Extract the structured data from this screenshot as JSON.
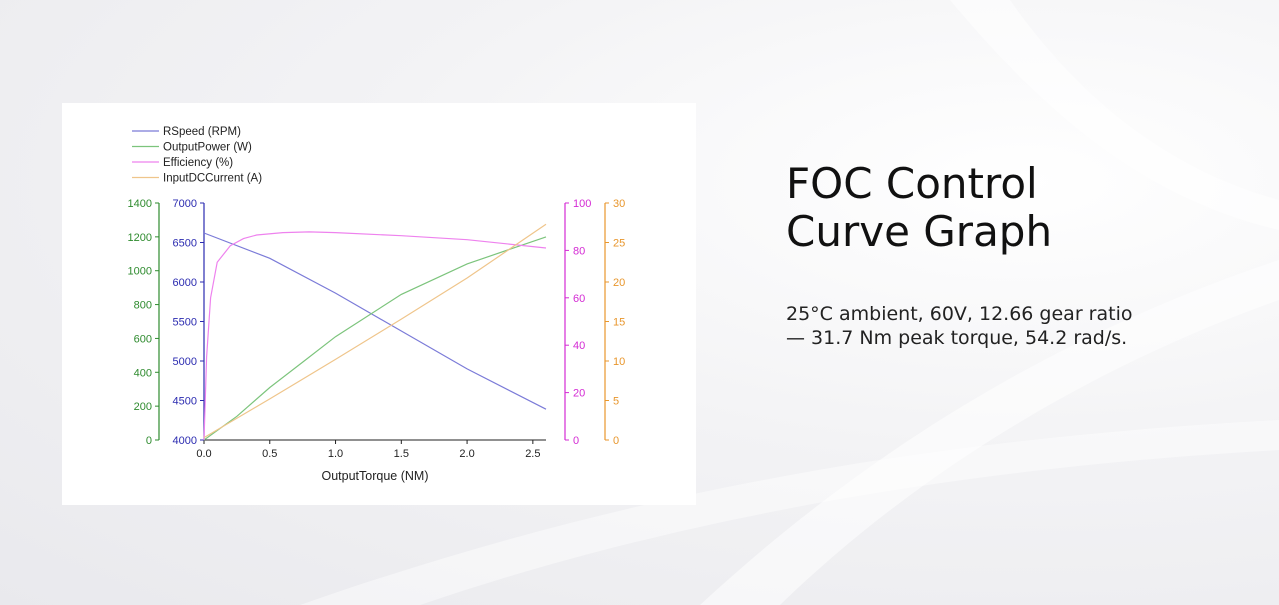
{
  "headline": {
    "line1": "FOC Control",
    "line2": "Curve Graph"
  },
  "caption": {
    "line1": "25°C ambient, 60V, 12.66 gear ratio",
    "line2": "— 31.7 Nm peak torque, 54.2 rad/s."
  },
  "chart_data": {
    "type": "line",
    "xlabel": "OutputTorque (NM)",
    "xlim": [
      0,
      2.6
    ],
    "x_ticks": [
      "0.0",
      "0.5",
      "1.0",
      "1.5",
      "2.0",
      "2.5"
    ],
    "legend_position": "top-left",
    "grid": false,
    "axes": [
      {
        "id": "power",
        "color": "#2e8b2e",
        "range": [
          0,
          1400
        ],
        "ticks": [
          0,
          200,
          400,
          600,
          800,
          1000,
          1200,
          1400
        ]
      },
      {
        "id": "speed",
        "color": "#2b2bb0",
        "range": [
          4000,
          7000
        ],
        "ticks": [
          4000,
          4500,
          5000,
          5500,
          6000,
          6500,
          7000
        ]
      },
      {
        "id": "efficiency",
        "color": "#d42bd4",
        "range": [
          0,
          100
        ],
        "ticks": [
          0,
          20,
          40,
          60,
          80,
          100
        ]
      },
      {
        "id": "current",
        "color": "#e8962c",
        "range": [
          0,
          30
        ],
        "ticks": [
          0,
          5,
          10,
          15,
          20,
          25,
          30
        ]
      }
    ],
    "series": [
      {
        "name": "RSpeed (RPM)",
        "axis": "speed",
        "color": "#7b7bd8",
        "points": [
          [
            0,
            6620
          ],
          [
            0.5,
            6300
          ],
          [
            1.0,
            5860
          ],
          [
            1.5,
            5380
          ],
          [
            2.0,
            4900
          ],
          [
            2.6,
            4390
          ]
        ]
      },
      {
        "name": "OutputPower (W)",
        "axis": "power",
        "color": "#7cc47c",
        "points": [
          [
            0,
            0
          ],
          [
            0.25,
            140
          ],
          [
            0.5,
            310
          ],
          [
            0.75,
            460
          ],
          [
            1.0,
            610
          ],
          [
            1.5,
            860
          ],
          [
            2.0,
            1040
          ],
          [
            2.6,
            1200
          ]
        ]
      },
      {
        "name": "Efficiency (%)",
        "axis": "efficiency",
        "color": "#ee82ee",
        "points": [
          [
            0,
            0
          ],
          [
            0.02,
            35
          ],
          [
            0.05,
            60
          ],
          [
            0.1,
            75
          ],
          [
            0.2,
            82
          ],
          [
            0.3,
            85
          ],
          [
            0.4,
            86.5
          ],
          [
            0.6,
            87.5
          ],
          [
            0.8,
            87.8
          ],
          [
            1.0,
            87.5
          ],
          [
            1.5,
            86.2
          ],
          [
            2.0,
            84.5
          ],
          [
            2.3,
            82.8
          ],
          [
            2.6,
            81
          ]
        ]
      },
      {
        "name": "InputDCCurrent (A)",
        "axis": "current",
        "color": "#efc58b",
        "points": [
          [
            0,
            0.3
          ],
          [
            0.5,
            5.2
          ],
          [
            1.0,
            10.2
          ],
          [
            1.5,
            15.3
          ],
          [
            2.0,
            20.5
          ],
          [
            2.6,
            27.3
          ]
        ]
      }
    ]
  }
}
